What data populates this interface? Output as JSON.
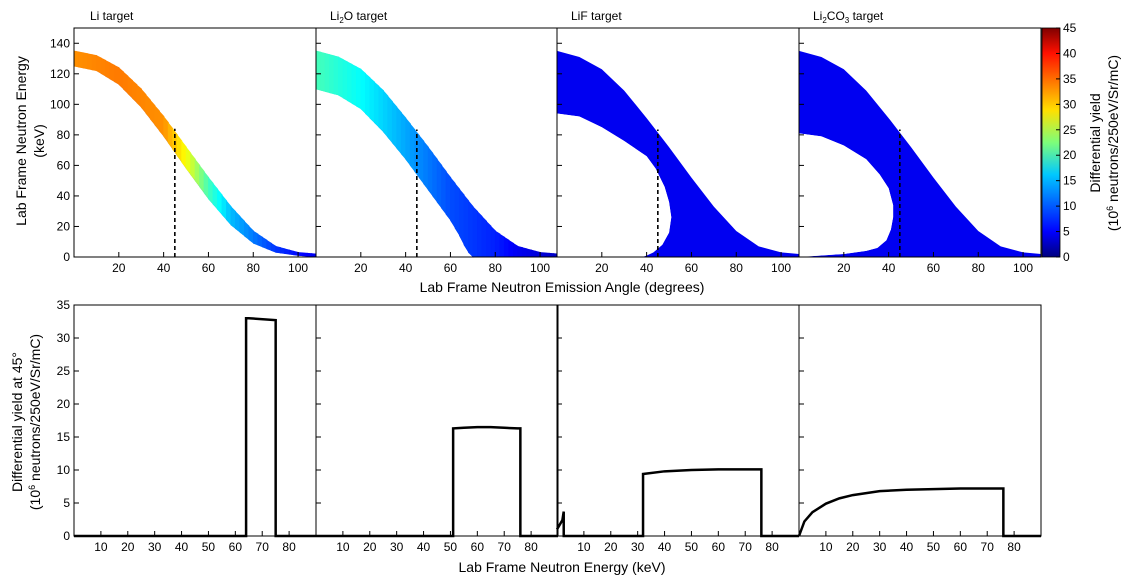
{
  "figure": {
    "top_xlabel": "Lab Frame Neutron Emission Angle (degrees)",
    "top_ylabel_line1": "Lab Frame Neutron Energy",
    "top_ylabel_line2": "(keV)",
    "bottom_xlabel": "Lab Frame Neutron Energy (keV)",
    "bottom_ylabel_line1": "Differential yield at 45°",
    "bottom_ylabel_line2_pre": "(10",
    "bottom_ylabel_line2_sup": "6",
    "bottom_ylabel_line2_post": " neutrons/250eV/Sr/mC)",
    "colorbar_label_line1": "Differential yield",
    "colorbar_label_line2_pre": "(10",
    "colorbar_label_line2_sup": "6",
    "colorbar_label_line2_post": " neutrons/250eV/Sr/mC)"
  },
  "chart_data": [
    {
      "type": "heatmap",
      "title": "Li target",
      "xlim": [
        0,
        108
      ],
      "ylim": [
        0,
        150
      ],
      "x_ticks": [
        20,
        40,
        60,
        80,
        100
      ],
      "y_ticks": [
        0,
        20,
        40,
        60,
        80,
        100,
        120,
        140
      ],
      "cut_angle": 45,
      "outer_edge": [
        [
          0,
          135
        ],
        [
          10,
          132
        ],
        [
          20,
          124
        ],
        [
          30,
          110
        ],
        [
          40,
          92
        ],
        [
          50,
          72
        ],
        [
          60,
          52
        ],
        [
          70,
          33
        ],
        [
          80,
          17
        ],
        [
          90,
          7
        ],
        [
          100,
          3
        ],
        [
          108,
          2
        ]
      ],
      "inner_edge": [
        [
          0,
          125
        ],
        [
          10,
          122
        ],
        [
          20,
          113
        ],
        [
          30,
          98
        ],
        [
          40,
          79
        ],
        [
          50,
          58
        ],
        [
          60,
          38
        ],
        [
          70,
          21
        ],
        [
          80,
          9
        ],
        [
          90,
          3
        ],
        [
          100,
          1
        ],
        [
          108,
          0
        ]
      ],
      "yield_along_band": [
        [
          0,
          33
        ],
        [
          20,
          34
        ],
        [
          40,
          33
        ],
        [
          50,
          28
        ],
        [
          60,
          20
        ],
        [
          70,
          14
        ],
        [
          80,
          11
        ],
        [
          90,
          8
        ],
        [
          100,
          6
        ],
        [
          108,
          5
        ]
      ]
    },
    {
      "type": "heatmap",
      "title_pre": "Li",
      "title_sub": "2",
      "title_post": "O target",
      "xlim": [
        0,
        108
      ],
      "ylim": [
        0,
        150
      ],
      "x_ticks": [
        20,
        40,
        60,
        80,
        100
      ],
      "cut_angle": 45,
      "outer_edge": [
        [
          0,
          135
        ],
        [
          10,
          131
        ],
        [
          20,
          123
        ],
        [
          30,
          109
        ],
        [
          40,
          91
        ],
        [
          50,
          72
        ],
        [
          60,
          52
        ],
        [
          70,
          33
        ],
        [
          80,
          17
        ],
        [
          90,
          7
        ],
        [
          100,
          3
        ],
        [
          108,
          2
        ]
      ],
      "inner_edge": [
        [
          0,
          110
        ],
        [
          10,
          106
        ],
        [
          20,
          97
        ],
        [
          30,
          82
        ],
        [
          40,
          64
        ],
        [
          50,
          44
        ],
        [
          60,
          24
        ],
        [
          64,
          14
        ],
        [
          66,
          8
        ],
        [
          68,
          3
        ],
        [
          70,
          0
        ]
      ],
      "yield_along_band": [
        [
          0,
          20
        ],
        [
          20,
          17
        ],
        [
          40,
          13
        ],
        [
          50,
          11
        ],
        [
          60,
          9
        ],
        [
          70,
          8
        ],
        [
          80,
          7
        ],
        [
          90,
          5
        ],
        [
          100,
          4
        ],
        [
          108,
          3
        ]
      ]
    },
    {
      "type": "heatmap",
      "title": "LiF target",
      "xlim": [
        0,
        108
      ],
      "ylim": [
        0,
        150
      ],
      "x_ticks": [
        20,
        40,
        60,
        80,
        100
      ],
      "cut_angle": 45,
      "outer_edge": [
        [
          0,
          135
        ],
        [
          10,
          131
        ],
        [
          20,
          123
        ],
        [
          30,
          109
        ],
        [
          40,
          91
        ],
        [
          50,
          72
        ],
        [
          60,
          52
        ],
        [
          70,
          33
        ],
        [
          80,
          17
        ],
        [
          90,
          7
        ],
        [
          100,
          3
        ],
        [
          108,
          2
        ]
      ],
      "inner_edge": [
        [
          0,
          94
        ],
        [
          10,
          92
        ],
        [
          20,
          85
        ],
        [
          30,
          76
        ],
        [
          40,
          66
        ],
        [
          44,
          58
        ],
        [
          48,
          46
        ],
        [
          50,
          36
        ],
        [
          51,
          26
        ],
        [
          50,
          16
        ],
        [
          47,
          8
        ],
        [
          43,
          3
        ],
        [
          40,
          1
        ],
        [
          38,
          0
        ]
      ],
      "yield_along_band": [
        [
          0,
          11
        ],
        [
          40,
          11
        ],
        [
          60,
          10
        ],
        [
          80,
          8
        ],
        [
          100,
          5
        ],
        [
          108,
          4
        ]
      ]
    },
    {
      "type": "heatmap",
      "title_pre": "Li",
      "title_sub": "2",
      "title_post": "CO",
      "title_sub2": "3",
      "title_post2": " target",
      "xlim": [
        0,
        108
      ],
      "ylim": [
        0,
        150
      ],
      "x_ticks": [
        20,
        40,
        60,
        80,
        100
      ],
      "cut_angle": 45,
      "outer_edge": [
        [
          0,
          135
        ],
        [
          10,
          131
        ],
        [
          20,
          123
        ],
        [
          30,
          109
        ],
        [
          40,
          91
        ],
        [
          50,
          72
        ],
        [
          60,
          52
        ],
        [
          70,
          33
        ],
        [
          80,
          17
        ],
        [
          90,
          7
        ],
        [
          100,
          3
        ],
        [
          108,
          2
        ]
      ],
      "inner_edge": [
        [
          0,
          81
        ],
        [
          10,
          79
        ],
        [
          20,
          73
        ],
        [
          30,
          64
        ],
        [
          36,
          54
        ],
        [
          40,
          45
        ],
        [
          42,
          34
        ],
        [
          42,
          26
        ],
        [
          41,
          18
        ],
        [
          39,
          11
        ],
        [
          35,
          6
        ],
        [
          30,
          4
        ],
        [
          20,
          2
        ],
        [
          10,
          1
        ],
        [
          0,
          0
        ]
      ],
      "yield_along_band": [
        [
          0,
          8
        ],
        [
          40,
          8
        ],
        [
          60,
          7
        ],
        [
          80,
          6
        ],
        [
          100,
          5
        ],
        [
          108,
          4
        ]
      ]
    },
    {
      "type": "line",
      "xlim": [
        0,
        90
      ],
      "ylim": [
        0,
        35
      ],
      "x_ticks": [
        10,
        20,
        30,
        40,
        50,
        60,
        70,
        80
      ],
      "y_ticks": [
        0,
        5,
        10,
        15,
        20,
        25,
        30,
        35
      ],
      "x": [
        0,
        64,
        64,
        65,
        75,
        75,
        90
      ],
      "y": [
        0,
        0,
        33,
        33,
        32.7,
        0,
        0
      ]
    },
    {
      "type": "line",
      "xlim": [
        0,
        90
      ],
      "ylim": [
        0,
        35
      ],
      "x_ticks": [
        10,
        20,
        30,
        40,
        50,
        60,
        70,
        80
      ],
      "x": [
        0,
        51,
        51,
        55,
        60,
        65,
        70,
        75,
        76,
        76,
        90
      ],
      "y": [
        0,
        0,
        16.3,
        16.4,
        16.5,
        16.5,
        16.4,
        16.3,
        16.3,
        0,
        0
      ]
    },
    {
      "type": "line",
      "xlim": [
        0,
        90
      ],
      "ylim": [
        0,
        35
      ],
      "x_ticks": [
        10,
        20,
        30,
        40,
        50,
        60,
        70,
        80
      ],
      "x": [
        0,
        2,
        2.5,
        2.5,
        32,
        32,
        40,
        50,
        60,
        70,
        76,
        76,
        90
      ],
      "y": [
        1,
        2.4,
        3.7,
        0,
        0,
        9.4,
        9.8,
        10,
        10.1,
        10.1,
        10.1,
        0,
        0
      ],
      "left_spike": [
        [
          0,
          1
        ],
        [
          1,
          2
        ],
        [
          2,
          3.1
        ],
        [
          2.5,
          3.7
        ],
        [
          2.5,
          0
        ]
      ]
    },
    {
      "type": "line",
      "xlim": [
        0,
        90
      ],
      "ylim": [
        0,
        35
      ],
      "x_ticks": [
        10,
        20,
        30,
        40,
        50,
        60,
        70,
        80
      ],
      "x": [
        0,
        2,
        5,
        10,
        15,
        20,
        30,
        40,
        50,
        60,
        70,
        76,
        76,
        90
      ],
      "y": [
        0,
        2.2,
        3.6,
        4.9,
        5.7,
        6.2,
        6.8,
        7.0,
        7.1,
        7.2,
        7.2,
        7.2,
        0,
        0
      ]
    }
  ],
  "colorbar": {
    "min": 0,
    "max": 45,
    "ticks": [
      0,
      5,
      10,
      15,
      20,
      25,
      30,
      35,
      40,
      45
    ],
    "colormap": "jet"
  }
}
